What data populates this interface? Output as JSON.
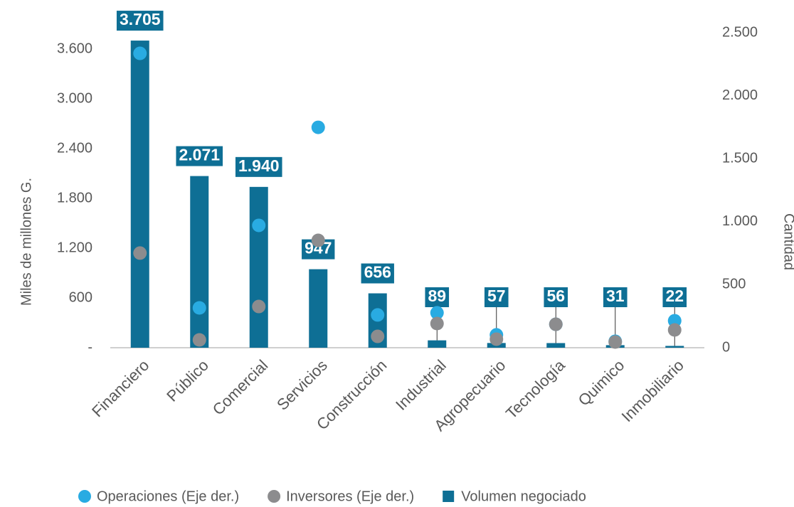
{
  "chart_data": {
    "type": "bar",
    "y_label": "Miles de millones G.",
    "y2_label": "Cantidad",
    "categories": [
      "Financiero",
      "Público",
      "Comercial",
      "Servicios",
      "Construcción",
      "Industrial",
      "Agropecuario",
      "Tecnología",
      "Quimico",
      "Inmobiliario"
    ],
    "series": [
      {
        "name": "Operaciones (Eje der.)",
        "type": "scatter",
        "axis": "y2",
        "color": "#29abe2",
        "values": [
          2336,
          316,
          971,
          1749,
          260,
          277,
          102,
          186,
          51,
          214
        ]
      },
      {
        "name": "Inversores (Eje der.)",
        "type": "scatter",
        "axis": "y2",
        "color": "#8c8c8e",
        "values": [
          751,
          62,
          327,
          852,
          90,
          192,
          68,
          186,
          45,
          141
        ]
      },
      {
        "name": "Volumen negociado",
        "type": "bar",
        "axis": "y",
        "color": "#0e6f95",
        "values": [
          3705,
          2071,
          1940,
          947,
          656,
          89,
          57,
          56,
          31,
          22
        ],
        "value_labels": [
          "3.705",
          "2.071",
          "1.940",
          "947",
          "656",
          "89",
          "57",
          "56",
          "31",
          "22"
        ]
      }
    ],
    "ylim": [
      0,
      3800
    ],
    "yticks": [
      {
        "value": 0,
        "label": "-"
      },
      600,
      {
        "value": 1200,
        "label": "1.200"
      },
      {
        "value": 1800,
        "label": "1.800"
      },
      {
        "value": 2400,
        "label": "2.400"
      },
      {
        "value": 3000,
        "label": "3.000"
      },
      {
        "value": 3600,
        "label": "3.600"
      }
    ],
    "y2lim": [
      0,
      2500
    ],
    "y2ticks": [
      0,
      500,
      {
        "value": 1000,
        "label": "1.000"
      },
      {
        "value": 1500,
        "label": "1.500"
      },
      {
        "value": 2000,
        "label": "2.000"
      },
      {
        "value": 2500,
        "label": "2.500"
      }
    ],
    "grid": false,
    "legend": "bottom"
  }
}
